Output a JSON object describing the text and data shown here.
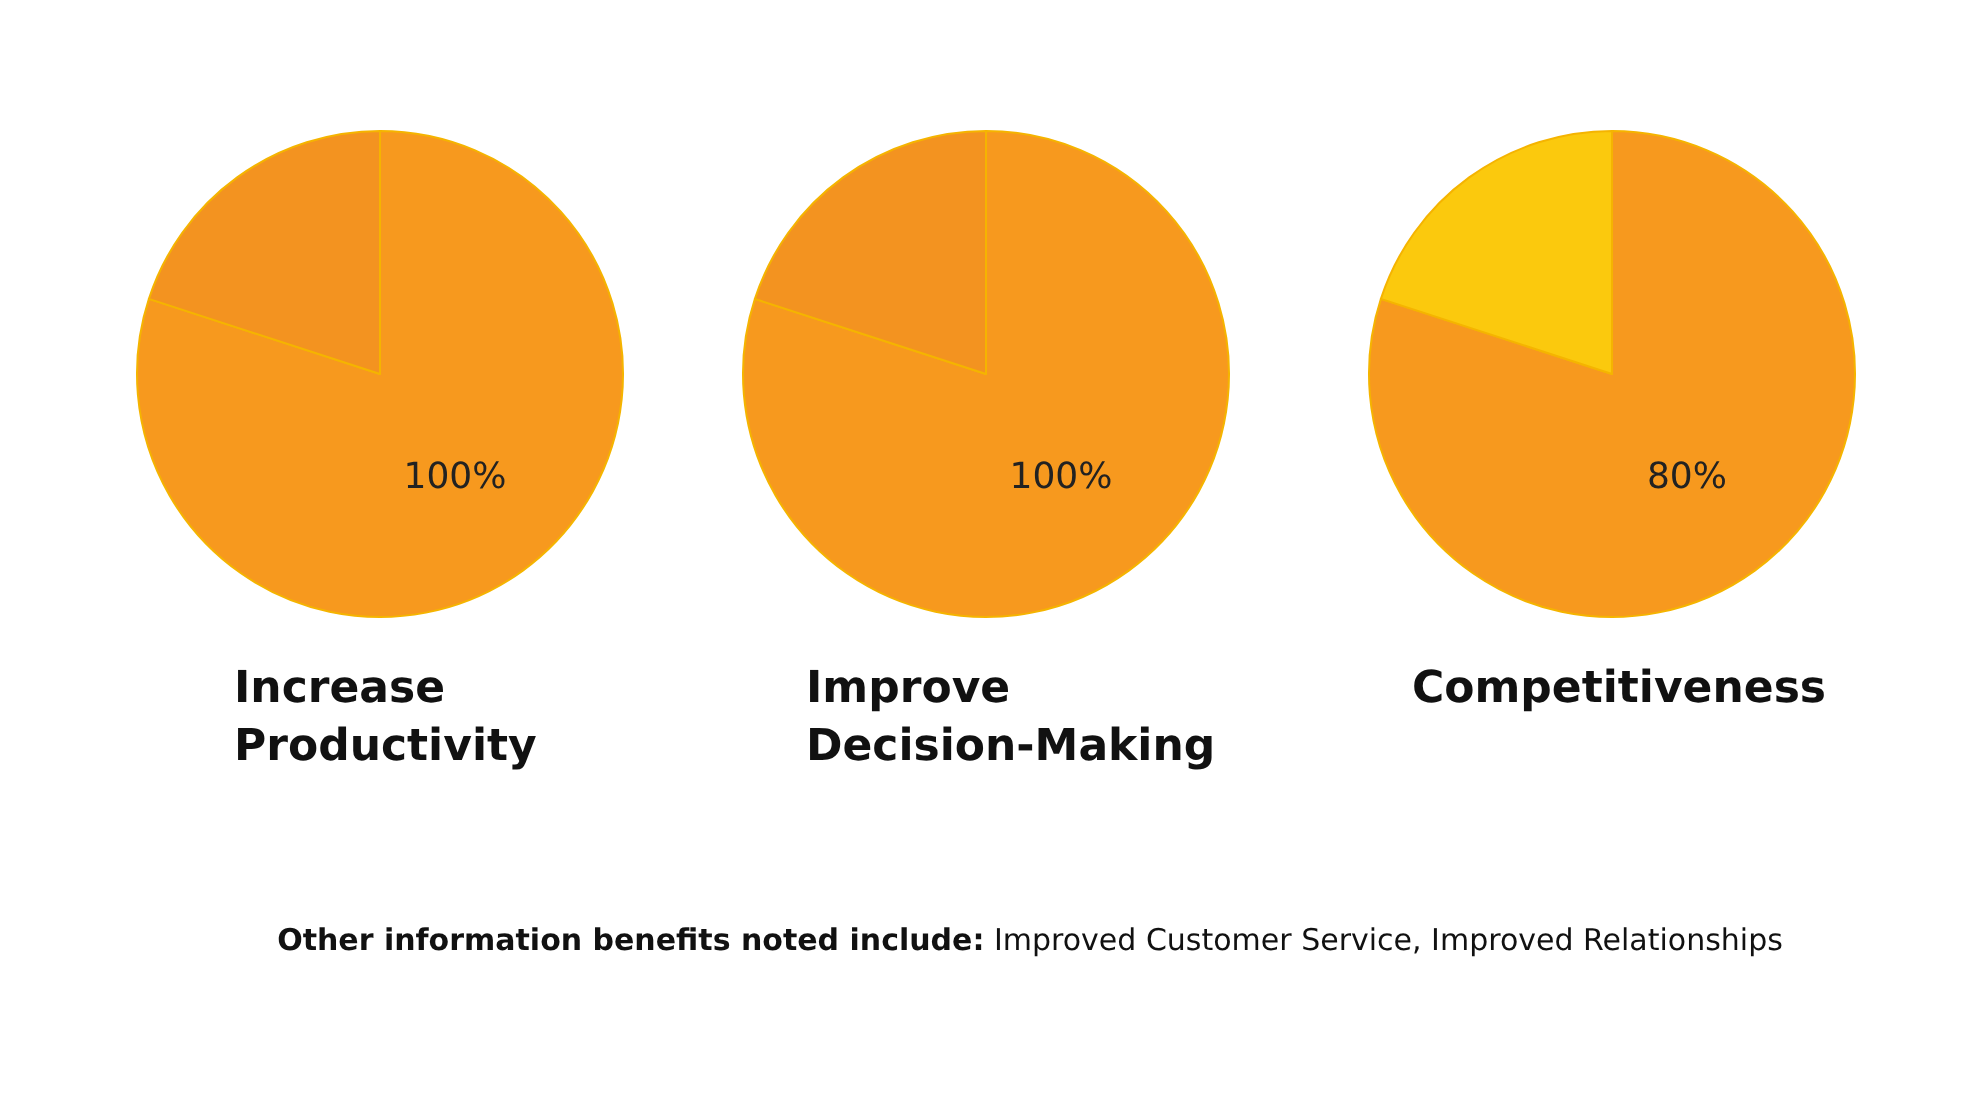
{
  "chart_data": [
    {
      "type": "pie",
      "title": "Increase Productivity",
      "categories": [
        null,
        null
      ],
      "values": [
        100,
        25
      ],
      "colors": [
        "#f7991e",
        "#f39320"
      ],
      "value_labels": [
        "100%",
        null
      ]
    },
    {
      "type": "pie",
      "title": "Improve Decision-Making",
      "categories": [
        null,
        null
      ],
      "values": [
        100,
        25
      ],
      "colors": [
        "#f7991e",
        "#f39320"
      ],
      "value_labels": [
        "100%",
        null
      ]
    },
    {
      "type": "pie",
      "title": "Competitiveness",
      "categories": [
        null,
        null
      ],
      "values": [
        80,
        20
      ],
      "colors": [
        "#f7991e",
        "#fbc90d"
      ],
      "value_labels": [
        "80%",
        null
      ]
    },
    {
      "type": "other",
      "annotations": [
        "Other information benefits noted include: Improved Customer Service, Improved Relationships"
      ]
    }
  ]
}
